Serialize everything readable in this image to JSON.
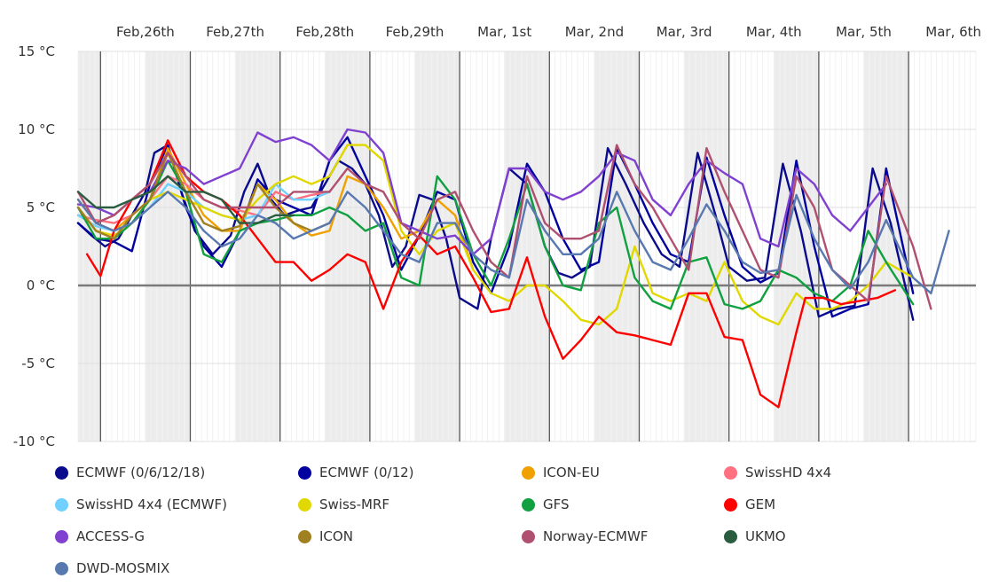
{
  "chart_data": {
    "type": "line",
    "ylim": [
      -10,
      15
    ],
    "yticks": [
      15,
      10,
      5,
      0,
      -5,
      -10
    ],
    "ytick_labels": [
      "15 °C",
      "10 °C",
      "5 °C",
      "0 °C",
      "-5 °C",
      "-10 °C"
    ],
    "xlim": [
      0,
      10
    ],
    "day_labels": [
      "Feb,26th",
      "Feb,27th",
      "Feb,28th",
      "Feb,29th",
      "Mar, 1st",
      "Mar, 2nd",
      "Mar, 3rd",
      "Mar, 4th",
      "Mar, 5th",
      "Mar, 6th"
    ],
    "night_bands": [
      [
        0,
        0.25
      ],
      [
        0.75,
        1.25
      ],
      [
        1.75,
        2.25
      ],
      [
        2.75,
        3.25
      ],
      [
        3.75,
        4.25
      ],
      [
        4.75,
        5.25
      ],
      [
        5.75,
        6.25
      ],
      [
        6.75,
        7.25
      ],
      [
        7.75,
        8.25
      ],
      [
        8.75,
        9.25
      ]
    ],
    "day_boundaries": [
      0.25,
      1.25,
      2.25,
      3.25,
      4.25,
      5.25,
      6.25,
      7.25,
      8.25,
      9.25
    ],
    "grid": true,
    "zero_line": true,
    "legend_position": "bottom",
    "series": [
      {
        "name": "ECMWF (0/6/12/18)",
        "color": "#0a0a8c",
        "x": [
          0,
          0.15,
          0.3,
          0.45,
          0.6,
          0.75,
          0.85,
          1.0,
          1.15,
          1.3,
          1.5,
          1.7,
          1.85,
          2.0,
          2.15,
          2.3,
          2.45,
          2.6,
          2.75,
          2.9,
          3.05,
          3.2,
          3.35,
          3.5,
          3.65,
          3.8,
          3.95,
          4.1,
          4.25,
          4.45,
          4.6,
          4.8,
          5.0,
          5.2,
          5.35,
          5.5,
          5.7,
          5.9,
          6.1,
          6.3,
          6.5,
          6.7,
          6.9,
          7.1,
          7.25,
          7.45,
          7.65,
          7.85,
          8.05,
          8.25,
          8.45,
          8.65,
          8.85,
          9.05,
          9.3
        ],
        "y": [
          4,
          3.2,
          2.5,
          3,
          4.5,
          6,
          8.5,
          9,
          6,
          3.5,
          2,
          3.2,
          6,
          7.8,
          5.5,
          4.5,
          4.8,
          5,
          6.5,
          8,
          7.5,
          6.5,
          4.5,
          1.2,
          2.5,
          5.8,
          5.5,
          3,
          -0.8,
          -1.5,
          3,
          7.5,
          6.5,
          2.5,
          0.8,
          0.5,
          1.2,
          8.8,
          6.5,
          4,
          2,
          1.2,
          8.5,
          4.5,
          1.2,
          0.3,
          0.5,
          7.8,
          3.5,
          -2,
          -1.5,
          -1.3,
          7.5,
          4,
          -2.2
        ]
      },
      {
        "name": "ECMWF (0/12)",
        "color": "#0000a0",
        "x": [
          0,
          0.2,
          0.4,
          0.6,
          0.8,
          1.0,
          1.2,
          1.4,
          1.6,
          1.8,
          2.0,
          2.2,
          2.4,
          2.6,
          2.8,
          3.0,
          3.2,
          3.4,
          3.6,
          3.8,
          4.0,
          4.2,
          4.4,
          4.6,
          4.8,
          5.0,
          5.2,
          5.4,
          5.6,
          5.8,
          6.0,
          6.2,
          6.4,
          6.6,
          6.8,
          7.0,
          7.2,
          7.4,
          7.6,
          7.8,
          8.0,
          8.2,
          8.4,
          8.6,
          8.8,
          9.0,
          9.3
        ],
        "y": [
          4,
          3,
          2.8,
          2.2,
          6.5,
          9,
          5,
          2.5,
          1.2,
          3.5,
          6.8,
          5.5,
          5,
          4.5,
          8,
          9.5,
          7,
          4.5,
          1,
          3.2,
          6,
          5.5,
          1.5,
          -0.5,
          2.5,
          7.8,
          6,
          3,
          1,
          1.5,
          8.8,
          6.5,
          4,
          2,
          1.5,
          8.2,
          4.5,
          1.2,
          0.2,
          0.8,
          8,
          2.5,
          -2,
          -1.5,
          -1.2,
          7.5,
          -0.5
        ]
      },
      {
        "name": "ICON-EU",
        "color": "#f0a000",
        "x": [
          0,
          0.2,
          0.4,
          0.6,
          0.8,
          1.0,
          1.2,
          1.4,
          1.6,
          1.8,
          2.0,
          2.2,
          2.4,
          2.6,
          2.8,
          3.0,
          3.2,
          3.4,
          3.6,
          3.8,
          4.0,
          4.2,
          4.4
        ],
        "y": [
          5.5,
          4,
          3.5,
          4.5,
          5.5,
          8.8,
          6.5,
          4.5,
          3.5,
          3.5,
          6.5,
          5.5,
          4,
          3.2,
          3.5,
          7,
          6.5,
          5,
          3,
          3.5,
          5.5,
          4.5,
          1
        ]
      },
      {
        "name": "SwissHD 4x4",
        "color": "#ff7080",
        "x": [
          0,
          0.2,
          0.4,
          0.6,
          0.8,
          1.0,
          1.2,
          1.4,
          1.6,
          1.8,
          2.0,
          2.2,
          2.4,
          2.6,
          2.8
        ],
        "y": [
          4.5,
          4.2,
          4,
          4.5,
          5.5,
          7,
          6.5,
          5.5,
          5,
          4.8,
          4.5,
          6,
          5.5,
          5.8,
          6
        ]
      },
      {
        "name": "SwissHD 4x4 (ECMWF)",
        "color": "#70d0ff",
        "x": [
          0,
          0.2,
          0.4,
          0.6,
          0.8,
          1.0,
          1.2,
          1.4,
          1.6,
          1.8,
          2.0,
          2.2,
          2.4,
          2.6,
          2.8
        ],
        "y": [
          4.5,
          3.8,
          3.5,
          4,
          5,
          6.5,
          6,
          5,
          4.5,
          4.2,
          4.5,
          6.5,
          5.5,
          5.5,
          6
        ]
      },
      {
        "name": "Swiss-MRF",
        "color": "#e0d800",
        "x": [
          0,
          0.2,
          0.4,
          0.6,
          0.8,
          1.0,
          1.2,
          1.4,
          1.6,
          1.8,
          2.0,
          2.2,
          2.4,
          2.6,
          2.8,
          3.0,
          3.2,
          3.4,
          3.6,
          3.8,
          4.0,
          4.2,
          4.4,
          4.6,
          4.8,
          5.0,
          5.2,
          5.4,
          5.6,
          5.8,
          6.0,
          6.2,
          6.4,
          6.6,
          6.8,
          7.0,
          7.2,
          7.4,
          7.6,
          7.8,
          8.0,
          8.2,
          8.4,
          8.6,
          8.8,
          9.0,
          9.3
        ],
        "y": [
          5,
          3.5,
          3.2,
          4,
          5.5,
          6,
          5.5,
          5,
          4.5,
          4.2,
          5.5,
          6.5,
          7,
          6.5,
          7,
          9,
          9,
          8,
          3.5,
          2,
          3.5,
          4,
          1,
          -0.5,
          -1,
          0,
          0,
          -1,
          -2.2,
          -2.5,
          -1.5,
          2.5,
          -0.5,
          -1,
          -0.5,
          -1,
          1.5,
          -1,
          -2,
          -2.5,
          -0.5,
          -1.5,
          -1.5,
          -1,
          0,
          1.5,
          0.5
        ]
      },
      {
        "name": "GFS",
        "color": "#10a040",
        "x": [
          0,
          0.2,
          0.4,
          0.6,
          0.8,
          1.0,
          1.2,
          1.4,
          1.6,
          1.8,
          2.0,
          2.2,
          2.4,
          2.6,
          2.8,
          3.0,
          3.2,
          3.4,
          3.6,
          3.8,
          4.0,
          4.2,
          4.4,
          4.6,
          4.8,
          5.0,
          5.2,
          5.4,
          5.6,
          5.8,
          6.0,
          6.2,
          6.4,
          6.6,
          6.8,
          7.0,
          7.2,
          7.4,
          7.6,
          7.8,
          8.0,
          8.2,
          8.4,
          8.6,
          8.8,
          9.0,
          9.3
        ],
        "y": [
          5,
          3,
          3,
          4,
          5.5,
          8,
          6,
          2,
          1.5,
          3.5,
          4,
          4.2,
          4.5,
          4.5,
          5,
          4.5,
          3.5,
          4,
          0.5,
          0,
          7,
          5.5,
          2,
          0,
          3,
          6.5,
          2.5,
          0,
          -0.3,
          4,
          5,
          0.5,
          -1,
          -1.5,
          1.5,
          1.8,
          -1.2,
          -1.5,
          -1,
          1,
          0.5,
          -0.5,
          -1,
          0,
          3.5,
          1.5,
          -1.2
        ]
      },
      {
        "name": "GEM",
        "color": "#ff0000",
        "x": [
          0.1,
          0.25,
          0.4,
          0.6,
          0.8,
          1.0,
          1.2,
          1.4,
          1.6,
          1.8,
          2.0,
          2.2,
          2.4,
          2.6,
          2.8,
          3.0,
          3.2,
          3.4,
          3.6,
          3.8,
          4.0,
          4.2,
          4.4,
          4.6,
          4.8,
          5.0,
          5.2,
          5.4,
          5.6,
          5.8,
          6.0,
          6.2,
          6.4,
          6.6,
          6.8,
          7.0,
          7.2,
          7.4,
          7.6,
          7.8,
          8.0,
          8.1,
          8.3,
          8.5,
          8.7,
          8.9,
          9.1
        ],
        "y": [
          2,
          0.6,
          3.5,
          5.5,
          6.5,
          9.3,
          7,
          6,
          5.5,
          4.5,
          3,
          1.5,
          1.5,
          0.3,
          1,
          2,
          1.5,
          -1.5,
          1.5,
          3.2,
          2,
          2.5,
          0.5,
          -1.7,
          -1.5,
          1.8,
          -2,
          -4.7,
          -3.5,
          -2,
          -3,
          -3.2,
          -3.5,
          -3.8,
          -0.5,
          -0.5,
          -3.3,
          -3.5,
          -7,
          -7.8,
          -3,
          -0.8,
          -0.8,
          -1.2,
          -1,
          -0.8,
          -0.3
        ]
      },
      {
        "name": "ACCESS-G",
        "color": "#8040d0",
        "x": [
          0,
          0.2,
          0.4,
          0.6,
          0.8,
          1.0,
          1.2,
          1.4,
          1.6,
          1.8,
          2.0,
          2.2,
          2.4,
          2.6,
          2.8,
          3.0,
          3.2,
          3.4,
          3.6,
          3.8,
          4.0,
          4.2,
          4.4,
          4.6,
          4.8,
          5.0,
          5.2,
          5.4,
          5.6,
          5.8,
          6.0,
          6.2,
          6.4,
          6.6,
          6.8,
          7.0,
          7.2,
          7.4,
          7.6,
          7.8,
          8.0,
          8.2,
          8.4,
          8.6,
          8.8,
          9.0
        ],
        "y": [
          5.2,
          5,
          4.5,
          5.5,
          6,
          8,
          7.5,
          6.5,
          7,
          7.5,
          9.8,
          9.2,
          9.5,
          9,
          8,
          10,
          9.8,
          8.5,
          4,
          3.5,
          3,
          3.2,
          2,
          3,
          7.5,
          7.5,
          6,
          5.5,
          6,
          7,
          8.5,
          8,
          5.5,
          4.5,
          6.5,
          8,
          7.2,
          6.5,
          3,
          2.5,
          7.5,
          6.5,
          4.5,
          3.5,
          5,
          6.5
        ]
      },
      {
        "name": "ICON",
        "color": "#a08020",
        "x": [
          0,
          0.2,
          0.4,
          0.6,
          0.8,
          1.0,
          1.2,
          1.4,
          1.6,
          1.8,
          2.0,
          2.2,
          2.4,
          2.6,
          2.8
        ],
        "y": [
          5,
          3.5,
          3,
          4.5,
          5.5,
          8.5,
          6,
          4,
          3.5,
          3.8,
          6.5,
          5,
          4,
          3.5,
          4
        ]
      },
      {
        "name": "Norway-ECMWF",
        "color": "#b05070",
        "x": [
          0,
          0.2,
          0.4,
          0.6,
          0.8,
          1.0,
          1.2,
          1.4,
          1.6,
          1.8,
          2.0,
          2.2,
          2.4,
          2.6,
          2.8,
          3.0,
          3.2,
          3.4,
          3.6,
          3.8,
          4.0,
          4.2,
          4.4,
          4.6,
          4.8,
          5.0,
          5.2,
          5.4,
          5.6,
          5.8,
          6.0,
          6.2,
          6.4,
          6.6,
          6.8,
          7.0,
          7.2,
          7.4,
          7.6,
          7.8,
          8.0,
          8.2,
          8.4,
          8.6,
          8.8,
          9.0,
          9.3,
          9.5
        ],
        "y": [
          6,
          4,
          4.5,
          5.5,
          6.5,
          8.5,
          7,
          5.5,
          5,
          5,
          5,
          5,
          6,
          6,
          6,
          7.5,
          6.5,
          6,
          4,
          3,
          5.5,
          6,
          3.5,
          1.5,
          0.5,
          7,
          4,
          3,
          3,
          3.5,
          9,
          6.5,
          5,
          3,
          1,
          8.8,
          6,
          3.5,
          1,
          0.5,
          7,
          5,
          1,
          0,
          -1,
          7,
          2.5,
          -1.5
        ]
      },
      {
        "name": "UKMO",
        "color": "#2a5c40",
        "x": [
          0,
          0.2,
          0.4,
          0.6,
          0.8,
          1.0,
          1.2,
          1.4,
          1.6,
          1.8,
          2.0,
          2.2,
          2.4
        ],
        "y": [
          6,
          5,
          5,
          5.5,
          6,
          7,
          6,
          6,
          5.5,
          4,
          4,
          4.5,
          4.5
        ]
      },
      {
        "name": "DWD-MOSMIX",
        "color": "#5878b0",
        "x": [
          0,
          0.2,
          0.4,
          0.6,
          0.8,
          1.0,
          1.2,
          1.4,
          1.6,
          1.8,
          2.0,
          2.2,
          2.4,
          2.6,
          2.8,
          3.0,
          3.2,
          3.4,
          3.6,
          3.8,
          4.0,
          4.2,
          4.4,
          4.6,
          4.8,
          5.0,
          5.2,
          5.4,
          5.6,
          5.8,
          6.0,
          6.2,
          6.4,
          6.6,
          6.8,
          7.0,
          7.2,
          7.4,
          7.6,
          7.8,
          8.0,
          8.2,
          8.4,
          8.6,
          8.8,
          9.0,
          9.3,
          9.5,
          9.7
        ],
        "y": [
          5.5,
          4,
          3.5,
          4,
          5,
          6,
          5,
          3.5,
          2.5,
          3,
          4.5,
          4,
          3,
          3.5,
          4,
          6,
          5,
          3.5,
          2,
          1.5,
          4,
          4,
          2,
          1,
          0.5,
          5.5,
          3.5,
          2,
          2,
          3,
          6,
          3.5,
          1.5,
          1,
          3,
          5.2,
          3.5,
          1.5,
          0.8,
          1,
          5.8,
          3,
          1,
          -0.2,
          1.5,
          4.2,
          0.5,
          -0.5,
          3.5
        ]
      }
    ]
  }
}
